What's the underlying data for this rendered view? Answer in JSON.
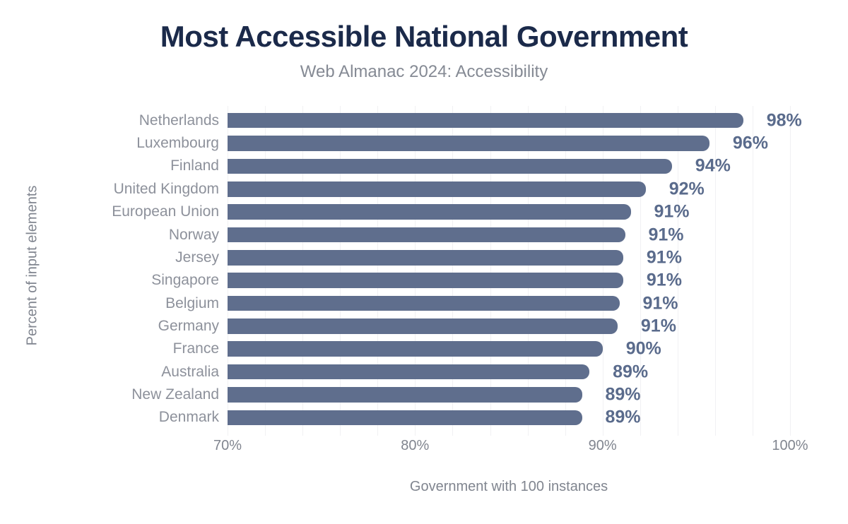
{
  "header": {
    "title": "Most Accessible National Government",
    "subtitle": "Web Almanac 2024: Accessibility"
  },
  "axes": {
    "y_title": "Percent of input elements",
    "x_title": "Government with 100 instances"
  },
  "colors": {
    "background": "#ffffff",
    "title": "#1b2a4a",
    "subtitle": "#858a94",
    "bar": "#5f6e8d",
    "value_label": "#5a6b8c",
    "category_label": "#8d919b",
    "axis_label": "#80858f",
    "gridline": "#f1f1f3"
  },
  "chart_data": {
    "type": "bar",
    "orientation": "horizontal",
    "title": "Most Accessible National Government",
    "subtitle": "Web Almanac 2024: Accessibility",
    "xlabel": "Government with 100 instances",
    "ylabel": "Percent of input elements",
    "xlim": [
      70,
      100
    ],
    "x_ticks": [
      {
        "label": "70%",
        "value": 70
      },
      {
        "label": "80%",
        "value": 80
      },
      {
        "label": "90%",
        "value": 90
      },
      {
        "label": "100%",
        "value": 100
      }
    ],
    "grid": "vertical gridlines every 2%, on",
    "legend": "none",
    "categories": [
      "Netherlands",
      "Luxembourg",
      "Finland",
      "United Kingdom",
      "European Union",
      "Norway",
      "Jersey",
      "Singapore",
      "Belgium",
      "Germany",
      "France",
      "Australia",
      "New Zealand",
      "Denmark"
    ],
    "values": [
      98,
      96,
      94,
      92,
      91,
      91,
      91,
      91,
      91,
      91,
      90,
      89,
      89,
      89
    ],
    "value_labels": [
      "98%",
      "96%",
      "94%",
      "92%",
      "91%",
      "91%",
      "91%",
      "91%",
      "91%",
      "91%",
      "90%",
      "89%",
      "89%",
      "89%"
    ],
    "bar_lengths_pct": [
      97.5,
      95.7,
      93.7,
      92.3,
      91.5,
      91.2,
      91.1,
      91.1,
      90.9,
      90.8,
      90.0,
      89.3,
      88.9,
      88.9
    ]
  }
}
